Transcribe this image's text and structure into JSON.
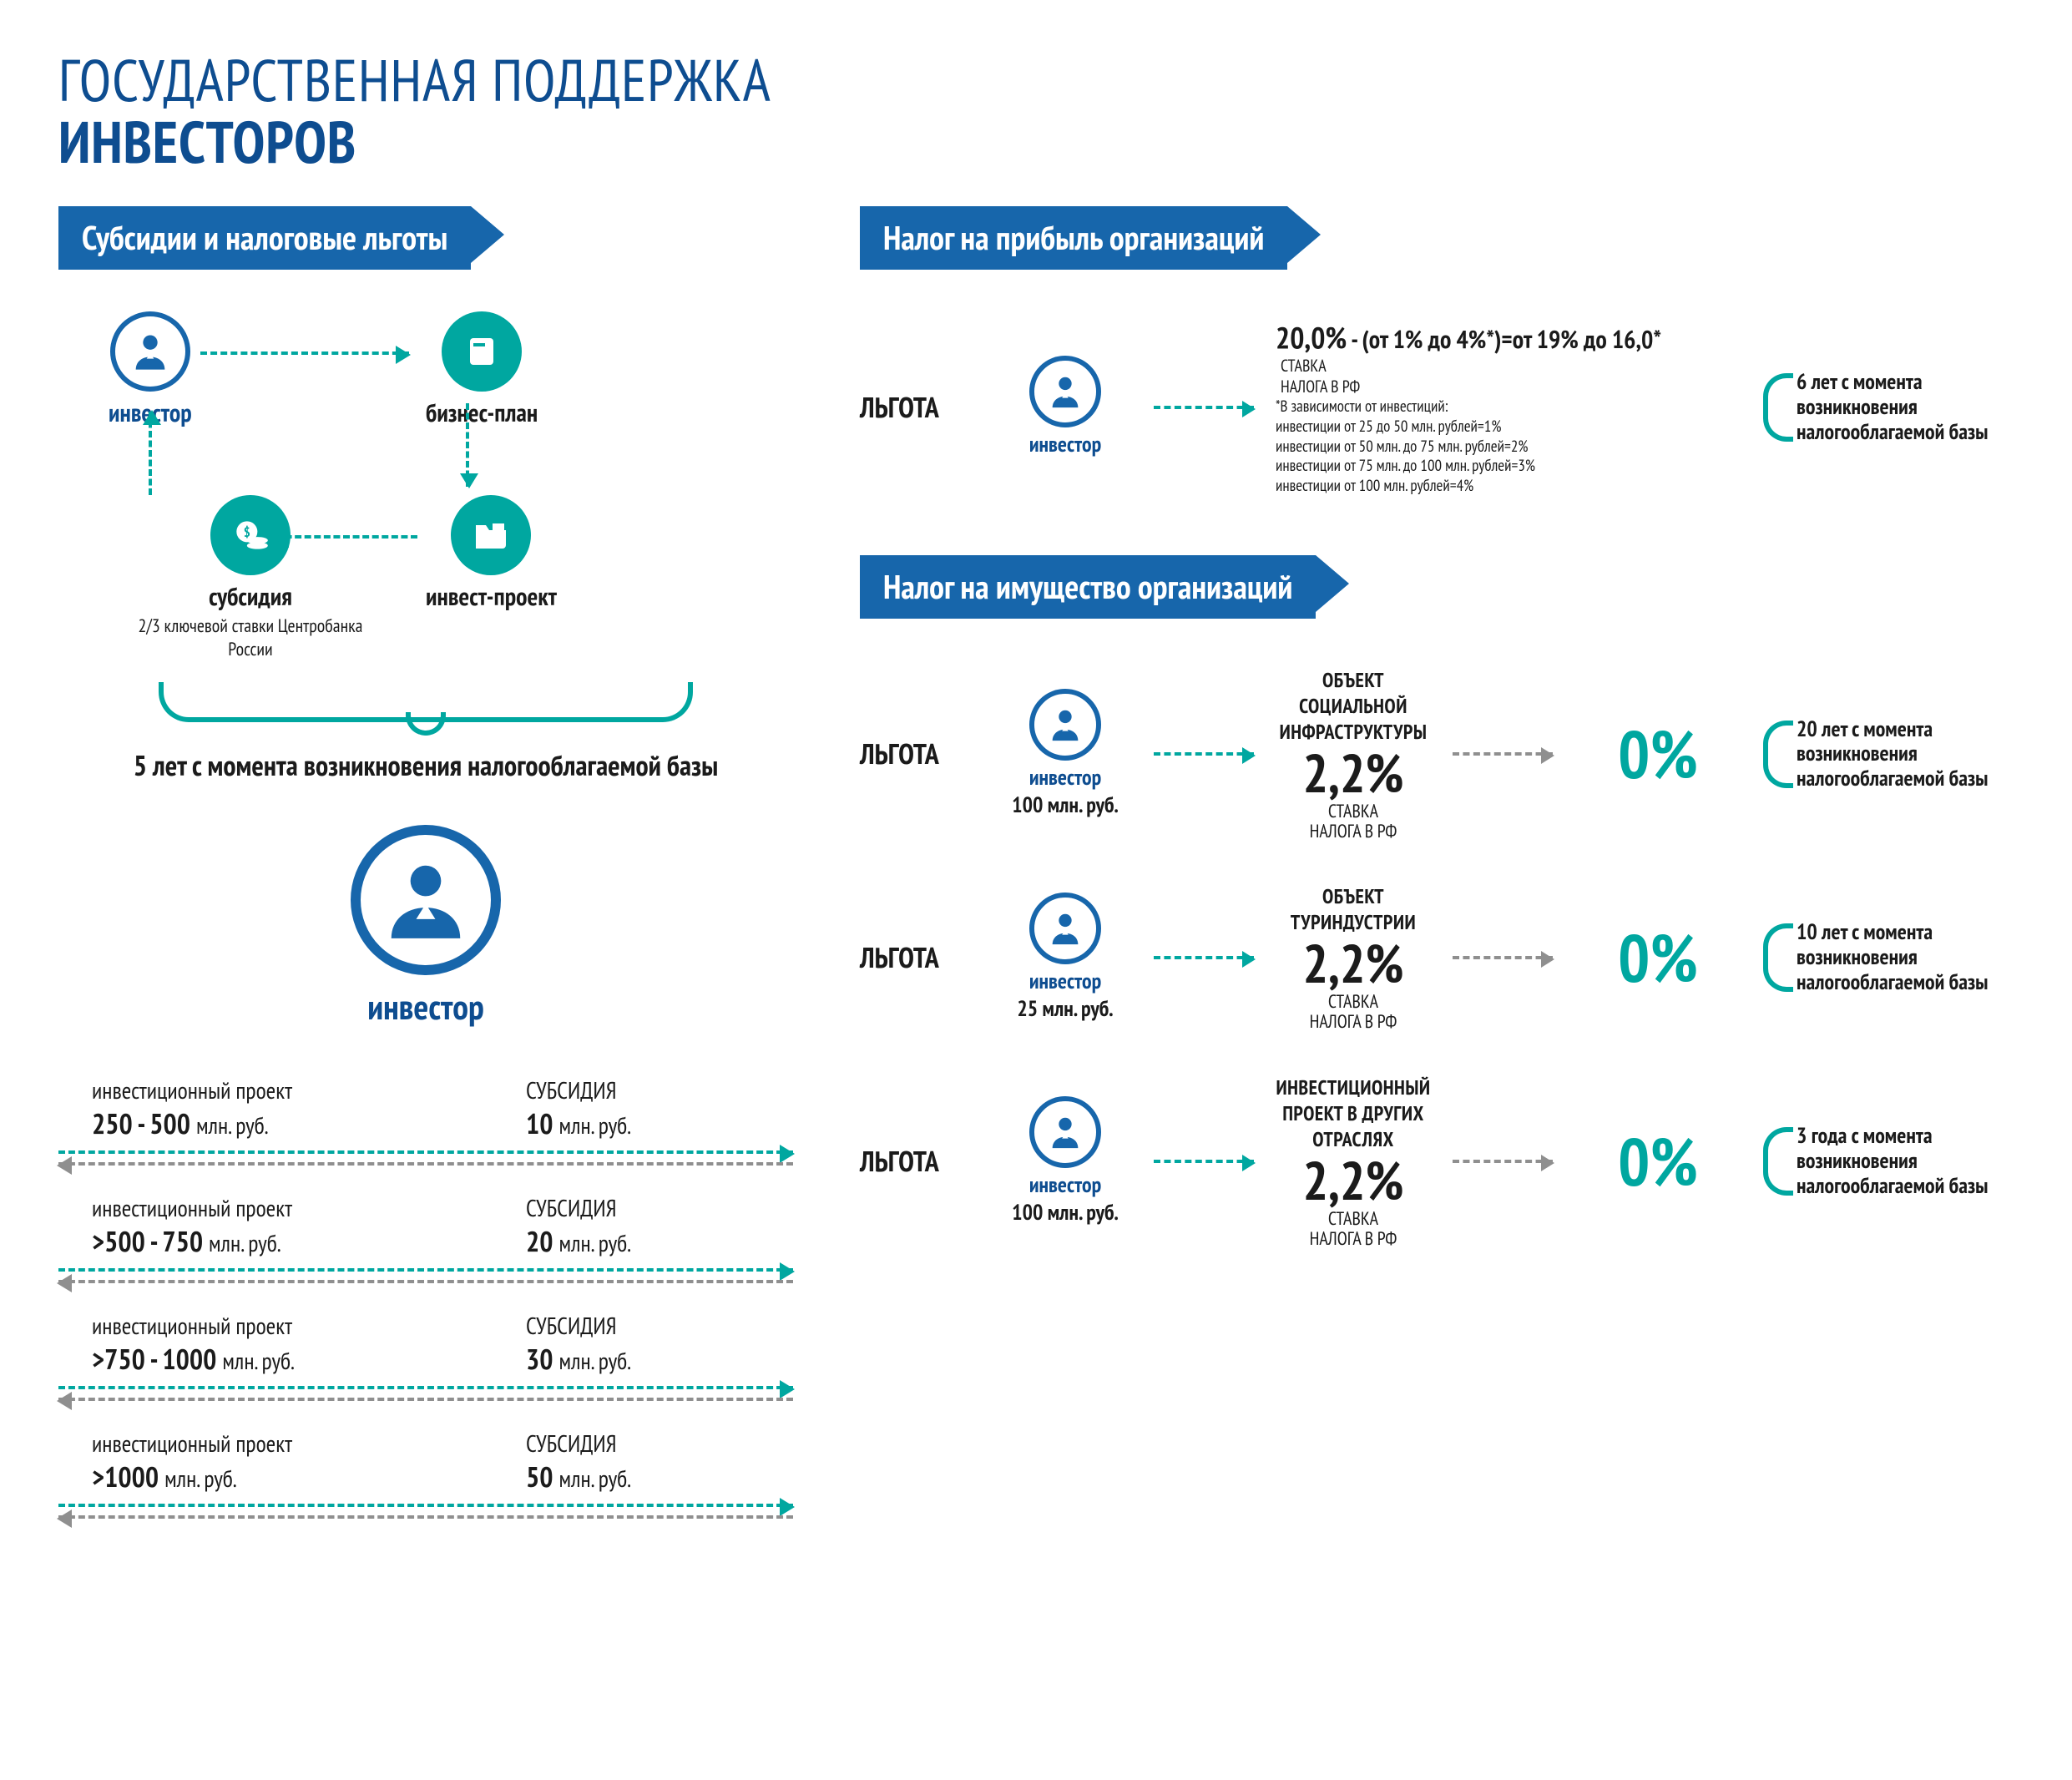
{
  "title_line1": "ГОСУДАРСТВЕННАЯ ПОДДЕРЖКА",
  "title_line2": "ИНВЕСТОРОВ",
  "colors": {
    "blue": "#1766ab",
    "dark_blue": "#0e4d90",
    "teal": "#00a7a0",
    "grey": "#8f8f8f",
    "text": "#1b1b1b",
    "bg": "#ffffff"
  },
  "left": {
    "ribbon": "Субсидии и налоговые льготы",
    "flow": {
      "investor": "инвестор",
      "biz_plan": "бизнес-план",
      "invest_project": "инвест-проект",
      "subsidy": "субсидия",
      "subsidy_note": "2/3 ключевой ставки Центробанка России"
    },
    "curly_caption": "5 лет с момента возникновения налогооблагаемой базы",
    "big_investor_label": "инвестор",
    "tiers": [
      {
        "proj_label": "инвестиционный проект",
        "proj_range": "250 - 500",
        "proj_unit": "млн. руб.",
        "sub_label": "СУБСИДИЯ",
        "sub_amount": "10",
        "sub_unit": "млн. руб."
      },
      {
        "proj_label": "инвестиционный проект",
        "proj_range": ">500 - 750",
        "proj_unit": "млн. руб.",
        "sub_label": "СУБСИДИЯ",
        "sub_amount": "20",
        "sub_unit": "млн. руб."
      },
      {
        "proj_label": "инвестиционный проект",
        "proj_range": ">750 - 1000",
        "proj_unit": "млн. руб.",
        "sub_label": "СУБСИДИЯ",
        "sub_amount": "30",
        "sub_unit": "млн. руб."
      },
      {
        "proj_label": "инвестиционный проект",
        "proj_range": ">1000",
        "proj_unit": "млн. руб.",
        "sub_label": "СУБСИДИЯ",
        "sub_amount": "50",
        "sub_unit": "млн. руб."
      }
    ]
  },
  "right": {
    "profit": {
      "ribbon": "Налог на прибыль организаций",
      "tag": "ЛЬГОТА",
      "investor": "инвестор",
      "headline_rate": "20,0%",
      "headline_rest": " - (от 1% до 4%*)=от 19% до 16,0*",
      "stavka1": "СТАВКА",
      "stavka2": "НАЛОГА В РФ",
      "fnote_head": "*В зависимости от инвестиций:",
      "fnote_lines": [
        "инвестиции от 25 до 50 млн. рублей=1%",
        "инвестиции от 50 млн. до 75 млн. рублей=2%",
        "инвестиции от 75 млн. до 100 млн. рублей=3%",
        "инвестиции от 100 млн. рублей=4%"
      ],
      "duration": "6 лет с момента возникновения налогооблагаемой базы"
    },
    "property": {
      "ribbon": "Налог на имущество организаций",
      "tag": "ЛЬГОТА",
      "investor": "инвестор",
      "rate": "2,2%",
      "rate_sub1": "СТАВКА",
      "rate_sub2": "НАЛОГА В РФ",
      "zero": "0%",
      "rows": [
        {
          "object": "ОБЪЕКТ СОЦИАЛЬНОЙ ИНФРАСТРУКТУРЫ",
          "amount": "100 млн. руб.",
          "duration": "20 лет с момента возникновения налогооблагаемой базы"
        },
        {
          "object": "ОБЪЕКТ ТУРИНДУСТРИИ",
          "amount": "25 млн. руб.",
          "duration": "10 лет с момента возникновения налогооблагаемой базы"
        },
        {
          "object": "ИНВЕСТИЦИОННЫЙ ПРОЕКТ В ДРУГИХ ОТРАСЛЯХ",
          "amount": "100 млн. руб.",
          "duration": "3 года с момента возникновения налогооблагаемой базы"
        }
      ]
    }
  }
}
